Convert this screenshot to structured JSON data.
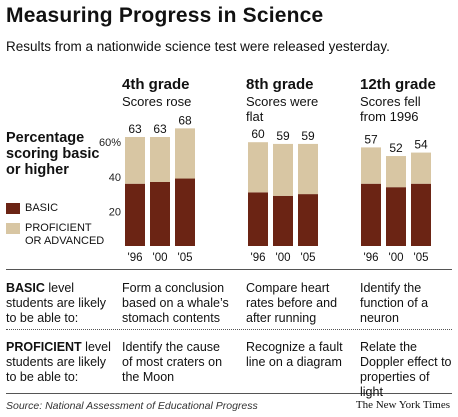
{
  "header": {
    "title": "Measuring Progress in Science",
    "subtitle": "Results from a nationwide science test were released yesterday."
  },
  "legend": {
    "heading": "Percentage scoring basic or higher",
    "items": [
      {
        "label": "BASIC",
        "color": "#6b2414"
      },
      {
        "label": "PROFICIENT OR ADVANCED",
        "color": "#d8c6a3"
      }
    ]
  },
  "chart_data": {
    "type": "bar",
    "stacked": true,
    "y_ticks": [
      "60%",
      "40",
      "20"
    ],
    "ylim": [
      0,
      75
    ],
    "grid": false,
    "panels": [
      {
        "title": "4th grade",
        "note": "Scores rose",
        "categories": [
          "'96",
          "'00",
          "'05"
        ],
        "totals": [
          63,
          63,
          68
        ],
        "series": [
          {
            "name": "BASIC",
            "values": [
              36,
              37,
              39
            ]
          },
          {
            "name": "PROFICIENT OR ADVANCED",
            "values": [
              27,
              26,
              29
            ]
          }
        ]
      },
      {
        "title": "8th grade",
        "note": "Scores were flat",
        "categories": [
          "'96",
          "'00",
          "'05"
        ],
        "totals": [
          60,
          59,
          59
        ],
        "series": [
          {
            "name": "BASIC",
            "values": [
              31,
              29,
              30
            ]
          },
          {
            "name": "PROFICIENT OR ADVANCED",
            "values": [
              29,
              30,
              29
            ]
          }
        ]
      },
      {
        "title": "12th grade",
        "note": "Scores fell from 1996",
        "categories": [
          "'96",
          "'00",
          "'05"
        ],
        "totals": [
          57,
          52,
          54
        ],
        "series": [
          {
            "name": "BASIC",
            "values": [
              36,
              34,
              36
            ]
          },
          {
            "name": "PROFICIENT OR ADVANCED",
            "values": [
              21,
              18,
              18
            ]
          }
        ]
      }
    ]
  },
  "rows": [
    {
      "label_bold": "BASIC",
      "label_rest": " level students are likely to be able to:",
      "cells": [
        "Form a conclusion based on a whale’s stomach contents",
        "Compare heart rates before and after running",
        "Identify the function of a neuron"
      ]
    },
    {
      "label_bold": "PROFICIENT",
      "label_rest": " level students are likely to be able to:",
      "cells": [
        "Identify the cause of most craters on the Moon",
        "Recognize a fault line on a diagram",
        "Relate the Doppler effect to properties of light"
      ]
    }
  ],
  "footer": {
    "source": "Source: National Assessment of Educational Progress",
    "credit": "The New York Times"
  }
}
